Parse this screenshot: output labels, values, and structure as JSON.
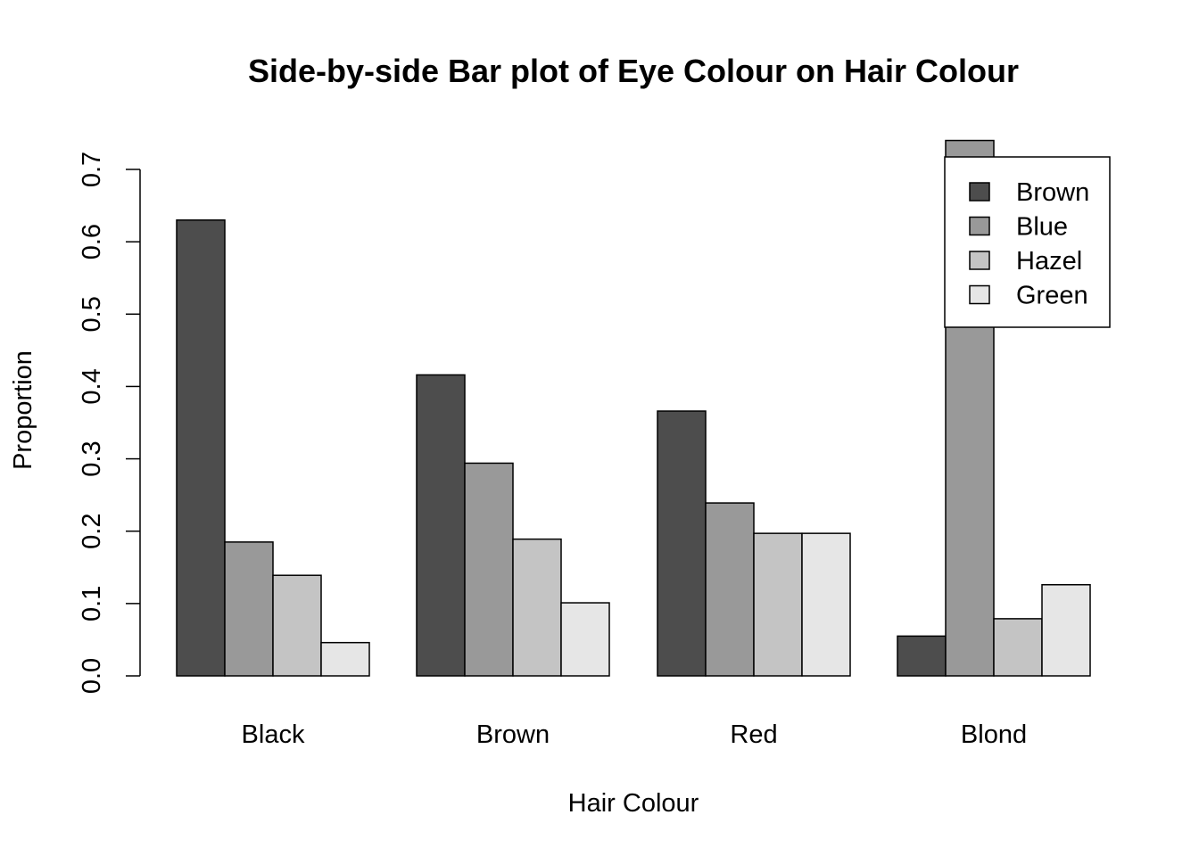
{
  "chart_data": {
    "type": "bar",
    "title": "Side-by-side Bar plot of Eye Colour on Hair Colour",
    "xlabel": "Hair Colour",
    "ylabel": "Proportion",
    "categories": [
      "Black",
      "Brown",
      "Red",
      "Blond"
    ],
    "series": [
      {
        "name": "Brown",
        "color": "#4d4d4d",
        "values": [
          0.63,
          0.416,
          0.366,
          0.055
        ]
      },
      {
        "name": "Blue",
        "color": "#999999",
        "values": [
          0.185,
          0.294,
          0.239,
          0.74
        ]
      },
      {
        "name": "Hazel",
        "color": "#c4c4c4",
        "values": [
          0.139,
          0.189,
          0.197,
          0.079
        ]
      },
      {
        "name": "Green",
        "color": "#e6e6e6",
        "values": [
          0.046,
          0.101,
          0.197,
          0.126
        ]
      }
    ],
    "ylim": [
      0,
      0.7
    ],
    "yticks": [
      0.0,
      0.1,
      0.2,
      0.3,
      0.4,
      0.5,
      0.6,
      0.7
    ],
    "ytick_labels": [
      "0.0",
      "0.1",
      "0.2",
      "0.3",
      "0.4",
      "0.5",
      "0.6",
      "0.7"
    ],
    "grid": false,
    "legend_position": "top-right"
  }
}
